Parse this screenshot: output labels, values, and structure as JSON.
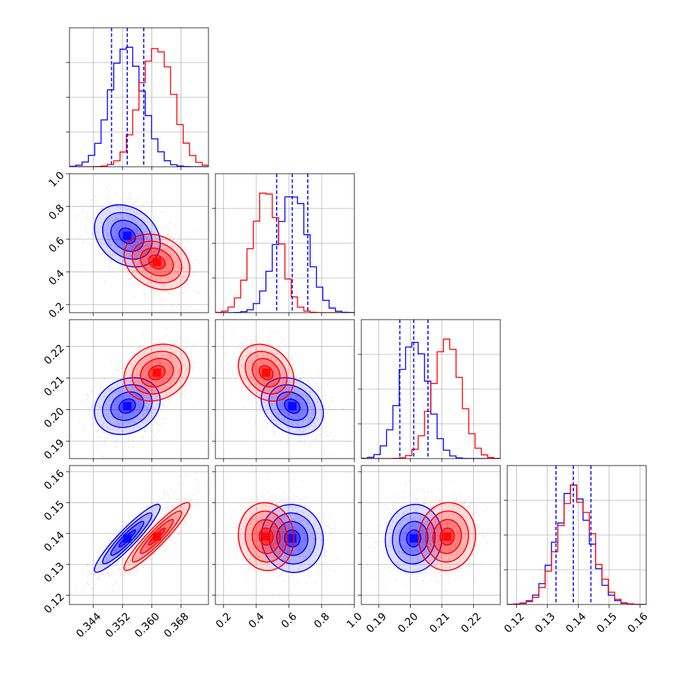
{
  "chart_data": {
    "type": "corner",
    "parameters": 4,
    "series": [
      {
        "name": "",
        "color": "#0000ff",
        "means": [
          0.3533,
          0.62,
          0.2011,
          0.1384
        ],
        "stds": [
          0.0045,
          0.095,
          0.0045,
          0.0055
        ],
        "correlations": {
          "0-1": -0.25,
          "0-2": 0.2,
          "0-3": 0.93,
          "1-2": -0.25,
          "1-3": -0.05,
          "2-3": 0.05
        }
      },
      {
        "name": "",
        "color": "#ff0000",
        "means": [
          0.3614,
          0.46,
          0.2117,
          0.139
        ],
        "stds": [
          0.0045,
          0.085,
          0.0045,
          0.0055
        ],
        "correlations": {
          "0-1": -0.25,
          "0-2": 0.2,
          "0-3": 0.93,
          "1-2": -0.25,
          "1-3": -0.05,
          "2-3": 0.05
        }
      }
    ],
    "axes": [
      {
        "index": 0,
        "range": [
          0.3375,
          0.3755
        ],
        "ticks": [
          0.344,
          0.352,
          0.36,
          0.368
        ],
        "tick_labels": [
          "0.344",
          "0.352",
          "0.360",
          "0.368"
        ]
      },
      {
        "index": 1,
        "range": [
          0.15,
          1.0
        ],
        "ticks": [
          0.2,
          0.4,
          0.6,
          0.8,
          1.0
        ],
        "tick_labels": [
          "0.2",
          "0.4",
          "0.6",
          "0.8",
          "1.0"
        ]
      },
      {
        "index": 2,
        "range": [
          0.1845,
          0.2285
        ],
        "ticks": [
          0.19,
          0.2,
          0.21,
          0.22
        ],
        "tick_labels": [
          "0.19",
          "0.20",
          "0.21",
          "0.22"
        ]
      },
      {
        "index": 3,
        "range": [
          0.117,
          0.162
        ],
        "ticks": [
          0.12,
          0.13,
          0.14,
          0.15,
          0.16
        ],
        "tick_labels": [
          "0.12",
          "0.13",
          "0.14",
          "0.15",
          "0.16"
        ]
      }
    ],
    "quantile_lines": {
      "color": "#0000ff",
      "style": "dashed",
      "values": [
        [
          0.349,
          0.3533,
          0.3578
        ],
        [
          0.525,
          0.62,
          0.715
        ],
        [
          0.1967,
          0.2011,
          0.2056
        ],
        [
          0.1328,
          0.1384,
          0.1441
        ]
      ]
    },
    "contour_levels_sigma": [
      0.5,
      1.0,
      1.5,
      2.0
    ],
    "grid": true,
    "legend": "none"
  }
}
